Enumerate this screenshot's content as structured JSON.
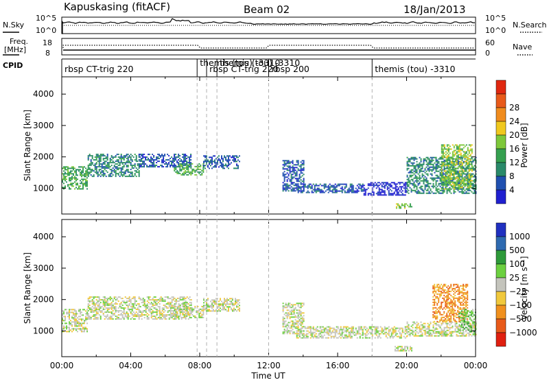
{
  "header": {
    "title": "Kapuskasing (fitACF)",
    "beam": "Beam 02",
    "date": "18/Jan/2013"
  },
  "top_panels": {
    "nsky_label": "N.Sky",
    "nsky_ticks": [
      "10^5",
      "10^0"
    ],
    "nsearch_label": "N.Search",
    "nsearch_ticks": [
      "10^5",
      "10^0"
    ],
    "freq_label_1": "Freq.",
    "freq_label_2": "[MHz]",
    "freq_ticks": [
      "18",
      "8"
    ],
    "nave_label": "Nave",
    "nave_ticks": [
      "60",
      "0"
    ],
    "cpid_label": "CPID"
  },
  "cpid_segments": [
    {
      "start": 0.0,
      "label": "rbsp CT-trig 220"
    },
    {
      "start": 7.85,
      "label": "themis (tou) -3310"
    },
    {
      "start": 8.4,
      "label": "rbsp CT-trig 220"
    },
    {
      "start": 9.0,
      "label": "themis (tou) -3310"
    },
    {
      "start": 12.0,
      "label": "rbsp 200"
    },
    {
      "start": 18.0,
      "label": "themis (tou) -3310"
    }
  ],
  "colors": {
    "power": [
      "#2020d0",
      "#2050b0",
      "#2a8a6a",
      "#36a050",
      "#7ec83a",
      "#f0c81e",
      "#f08c1e",
      "#e85a1a",
      "#e02810"
    ],
    "velocity": [
      "#2030c0",
      "#2e6ab0",
      "#2e9a3a",
      "#6cd040",
      "#c4c4bc",
      "#f0c83c",
      "#f0901e",
      "#e85a1a",
      "#e02010"
    ]
  },
  "chart_data": [
    {
      "type": "heatmap",
      "name": "power",
      "xlabel": "Time UT",
      "ylabel": "Slant Range [km]",
      "xlim": [
        0,
        24
      ],
      "ylim": [
        180,
        4550
      ],
      "x_ticks": [
        "00:00",
        "04:00",
        "08:00",
        "12:00",
        "16:00",
        "20:00",
        "00:00"
      ],
      "y_ticks": [
        1000,
        2000,
        3000,
        4000
      ],
      "colorbar": {
        "label": "Power [dB]",
        "ticks": [
          "4",
          "8",
          "12",
          "16",
          "20",
          "24",
          "28"
        ]
      },
      "regions": [
        {
          "t": [
            0.0,
            1.5
          ],
          "r": [
            1000,
            1700
          ],
          "level": 3
        },
        {
          "t": [
            1.5,
            4.5
          ],
          "r": [
            1400,
            2100
          ],
          "level": 2
        },
        {
          "t": [
            4.5,
            7.5
          ],
          "r": [
            1700,
            2100
          ],
          "level": 1
        },
        {
          "t": [
            6.5,
            8.2
          ],
          "r": [
            1450,
            1800
          ],
          "level": 3
        },
        {
          "t": [
            8.2,
            10.3
          ],
          "r": [
            1650,
            2050
          ],
          "level": 1
        },
        {
          "t": [
            12.8,
            14.0
          ],
          "r": [
            900,
            1900
          ],
          "level": 1
        },
        {
          "t": [
            13.6,
            17.5
          ],
          "r": [
            850,
            1150
          ],
          "level": 1
        },
        {
          "t": [
            17.5,
            20.0
          ],
          "r": [
            800,
            1200
          ],
          "level": 0
        },
        {
          "t": [
            20.0,
            24.0
          ],
          "r": [
            850,
            2000
          ],
          "level": 2
        },
        {
          "t": [
            22.0,
            23.8
          ],
          "r": [
            1000,
            2400
          ],
          "level": 4
        },
        {
          "t": [
            19.3,
            20.3
          ],
          "r": [
            380,
            520
          ],
          "level": 4
        }
      ]
    },
    {
      "type": "heatmap",
      "name": "velocity",
      "xlabel": "Time UT",
      "ylabel": "Slant Range [km]",
      "xlim": [
        0,
        24
      ],
      "ylim": [
        180,
        4550
      ],
      "x_ticks": [
        "00:00",
        "04:00",
        "08:00",
        "12:00",
        "16:00",
        "20:00",
        "00:00"
      ],
      "y_ticks": [
        1000,
        2000,
        3000,
        4000
      ],
      "colorbar": {
        "label": "Velocity [m s⁻¹]",
        "ticks": [
          "1000",
          "500",
          "100",
          "25",
          "−25",
          "−100",
          "−500",
          "−1000"
        ]
      },
      "regions": [
        {
          "t": [
            0.0,
            1.5
          ],
          "r": [
            1000,
            1700
          ],
          "level": 4
        },
        {
          "t": [
            1.5,
            7.5
          ],
          "r": [
            1400,
            2100
          ],
          "level": 4
        },
        {
          "t": [
            6.5,
            8.2
          ],
          "r": [
            1450,
            1800
          ],
          "level": 4
        },
        {
          "t": [
            8.2,
            10.3
          ],
          "r": [
            1650,
            2050
          ],
          "level": 4
        },
        {
          "t": [
            12.8,
            14.0
          ],
          "r": [
            900,
            1900
          ],
          "level": 4
        },
        {
          "t": [
            13.6,
            20.0
          ],
          "r": [
            800,
            1150
          ],
          "level": 4
        },
        {
          "t": [
            20.0,
            24.0
          ],
          "r": [
            850,
            1300
          ],
          "level": 4
        },
        {
          "t": [
            21.5,
            23.5
          ],
          "r": [
            1300,
            2500
          ],
          "level": 6
        },
        {
          "t": [
            23.0,
            24.0
          ],
          "r": [
            1000,
            1700
          ],
          "level": 3
        },
        {
          "t": [
            19.3,
            20.3
          ],
          "r": [
            380,
            520
          ],
          "level": 4
        }
      ]
    }
  ]
}
